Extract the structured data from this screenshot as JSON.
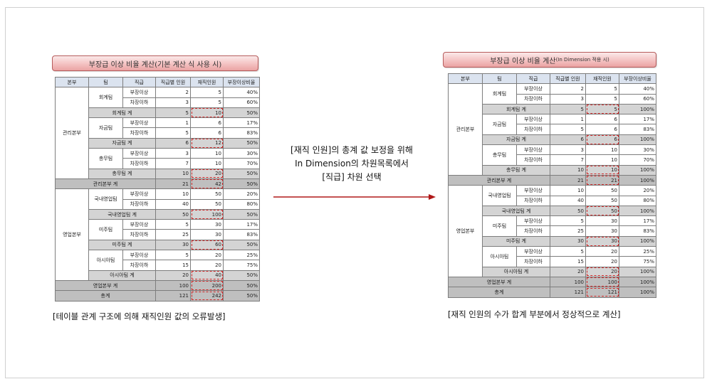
{
  "left": {
    "title": "부장급 이상 비율 계산(기본 계산 식 사용 시)",
    "caption": "[테이블 관계 구조에 의해 재직인원  값의 오류발생]"
  },
  "right": {
    "title_main": "부장급 이상 비율 계산",
    "title_small": "(In Dimension 적용 시)",
    "caption": "[재직 인원의 수가 합계 부분에서 정상적으로 계산]"
  },
  "headers": [
    "본부",
    "팀",
    "직급",
    "직급별 인원",
    "재직인원",
    "부장이상비율"
  ],
  "center_text": {
    "line1": "[재직 인원]의 총계 값 보정을 위해",
    "line2": "In Dimension의 차원목록에서",
    "line3": "[직급] 차원  선택"
  },
  "rows": {
    "mgmt_hq": "관리본부",
    "sales_hq": "영업본부",
    "team_acct": "회계팀",
    "team_fund": "자금팀",
    "team_gen": "총무팀",
    "team_dom": "국내영업팀",
    "team_us": "미주팀",
    "team_asia": "아시아팀",
    "rank_up": "부장이상",
    "rank_down": "차장이하",
    "sub_acct": "회계팀 계",
    "sub_fund": "자금팀 계",
    "sub_gen": "총무팀 계",
    "sub_mgmt": "관리본부 계",
    "sub_dom": "국내영업팀 계",
    "sub_us": "미주팀 계",
    "sub_asia": "아시아팀 계",
    "sub_sales": "영업본부 계",
    "grand": "총계"
  },
  "values_left": {
    "acct_up": [
      "2",
      "5",
      "40%"
    ],
    "acct_dn": [
      "3",
      "5",
      "60%"
    ],
    "acct_t": [
      "5",
      "10",
      "50%"
    ],
    "fund_up": [
      "1",
      "6",
      "17%"
    ],
    "fund_dn": [
      "5",
      "6",
      "83%"
    ],
    "fund_t": [
      "6",
      "12",
      "50%"
    ],
    "gen_up": [
      "3",
      "10",
      "30%"
    ],
    "gen_dn": [
      "7",
      "10",
      "70%"
    ],
    "gen_t": [
      "10",
      "20",
      "50%"
    ],
    "mgmt_t": [
      "21",
      "42",
      "50%"
    ],
    "dom_up": [
      "10",
      "50",
      "20%"
    ],
    "dom_dn": [
      "40",
      "50",
      "80%"
    ],
    "dom_t": [
      "50",
      "100",
      "50%"
    ],
    "us_up": [
      "5",
      "30",
      "17%"
    ],
    "us_dn": [
      "25",
      "30",
      "83%"
    ],
    "us_t": [
      "30",
      "60",
      "50%"
    ],
    "asia_up": [
      "5",
      "20",
      "25%"
    ],
    "asia_dn": [
      "15",
      "20",
      "75%"
    ],
    "asia_t": [
      "20",
      "40",
      "50%"
    ],
    "sales_t": [
      "100",
      "200",
      "50%"
    ],
    "grand_t": [
      "121",
      "242",
      "50%"
    ]
  },
  "values_right": {
    "acct_up": [
      "2",
      "5",
      "40%"
    ],
    "acct_dn": [
      "3",
      "5",
      "60%"
    ],
    "acct_t": [
      "5",
      "5",
      "100%"
    ],
    "fund_up": [
      "1",
      "6",
      "17%"
    ],
    "fund_dn": [
      "5",
      "6",
      "83%"
    ],
    "fund_t": [
      "6",
      "6",
      "100%"
    ],
    "gen_up": [
      "3",
      "10",
      "30%"
    ],
    "gen_dn": [
      "7",
      "10",
      "70%"
    ],
    "gen_t": [
      "10",
      "10",
      "100%"
    ],
    "mgmt_t": [
      "21",
      "21",
      "100%"
    ],
    "dom_up": [
      "10",
      "50",
      "20%"
    ],
    "dom_dn": [
      "40",
      "50",
      "80%"
    ],
    "dom_t": [
      "50",
      "50",
      "100%"
    ],
    "us_up": [
      "5",
      "30",
      "17%"
    ],
    "us_dn": [
      "25",
      "30",
      "83%"
    ],
    "us_t": [
      "30",
      "30",
      "100%"
    ],
    "asia_up": [
      "5",
      "20",
      "25%"
    ],
    "asia_dn": [
      "15",
      "20",
      "75%"
    ],
    "asia_t": [
      "20",
      "20",
      "100%"
    ],
    "sales_t": [
      "100",
      "100",
      "100%"
    ],
    "grand_t": [
      "121",
      "121",
      "100%"
    ]
  },
  "colors": {
    "header_bg": "#dbe3ef",
    "subtotal_bg": "#d4d4d4",
    "total_bg": "#bfbfbf",
    "highlight_dash": "#d02a2a",
    "arrow": "#b01818",
    "title_pill": "#f4c2c2"
  }
}
